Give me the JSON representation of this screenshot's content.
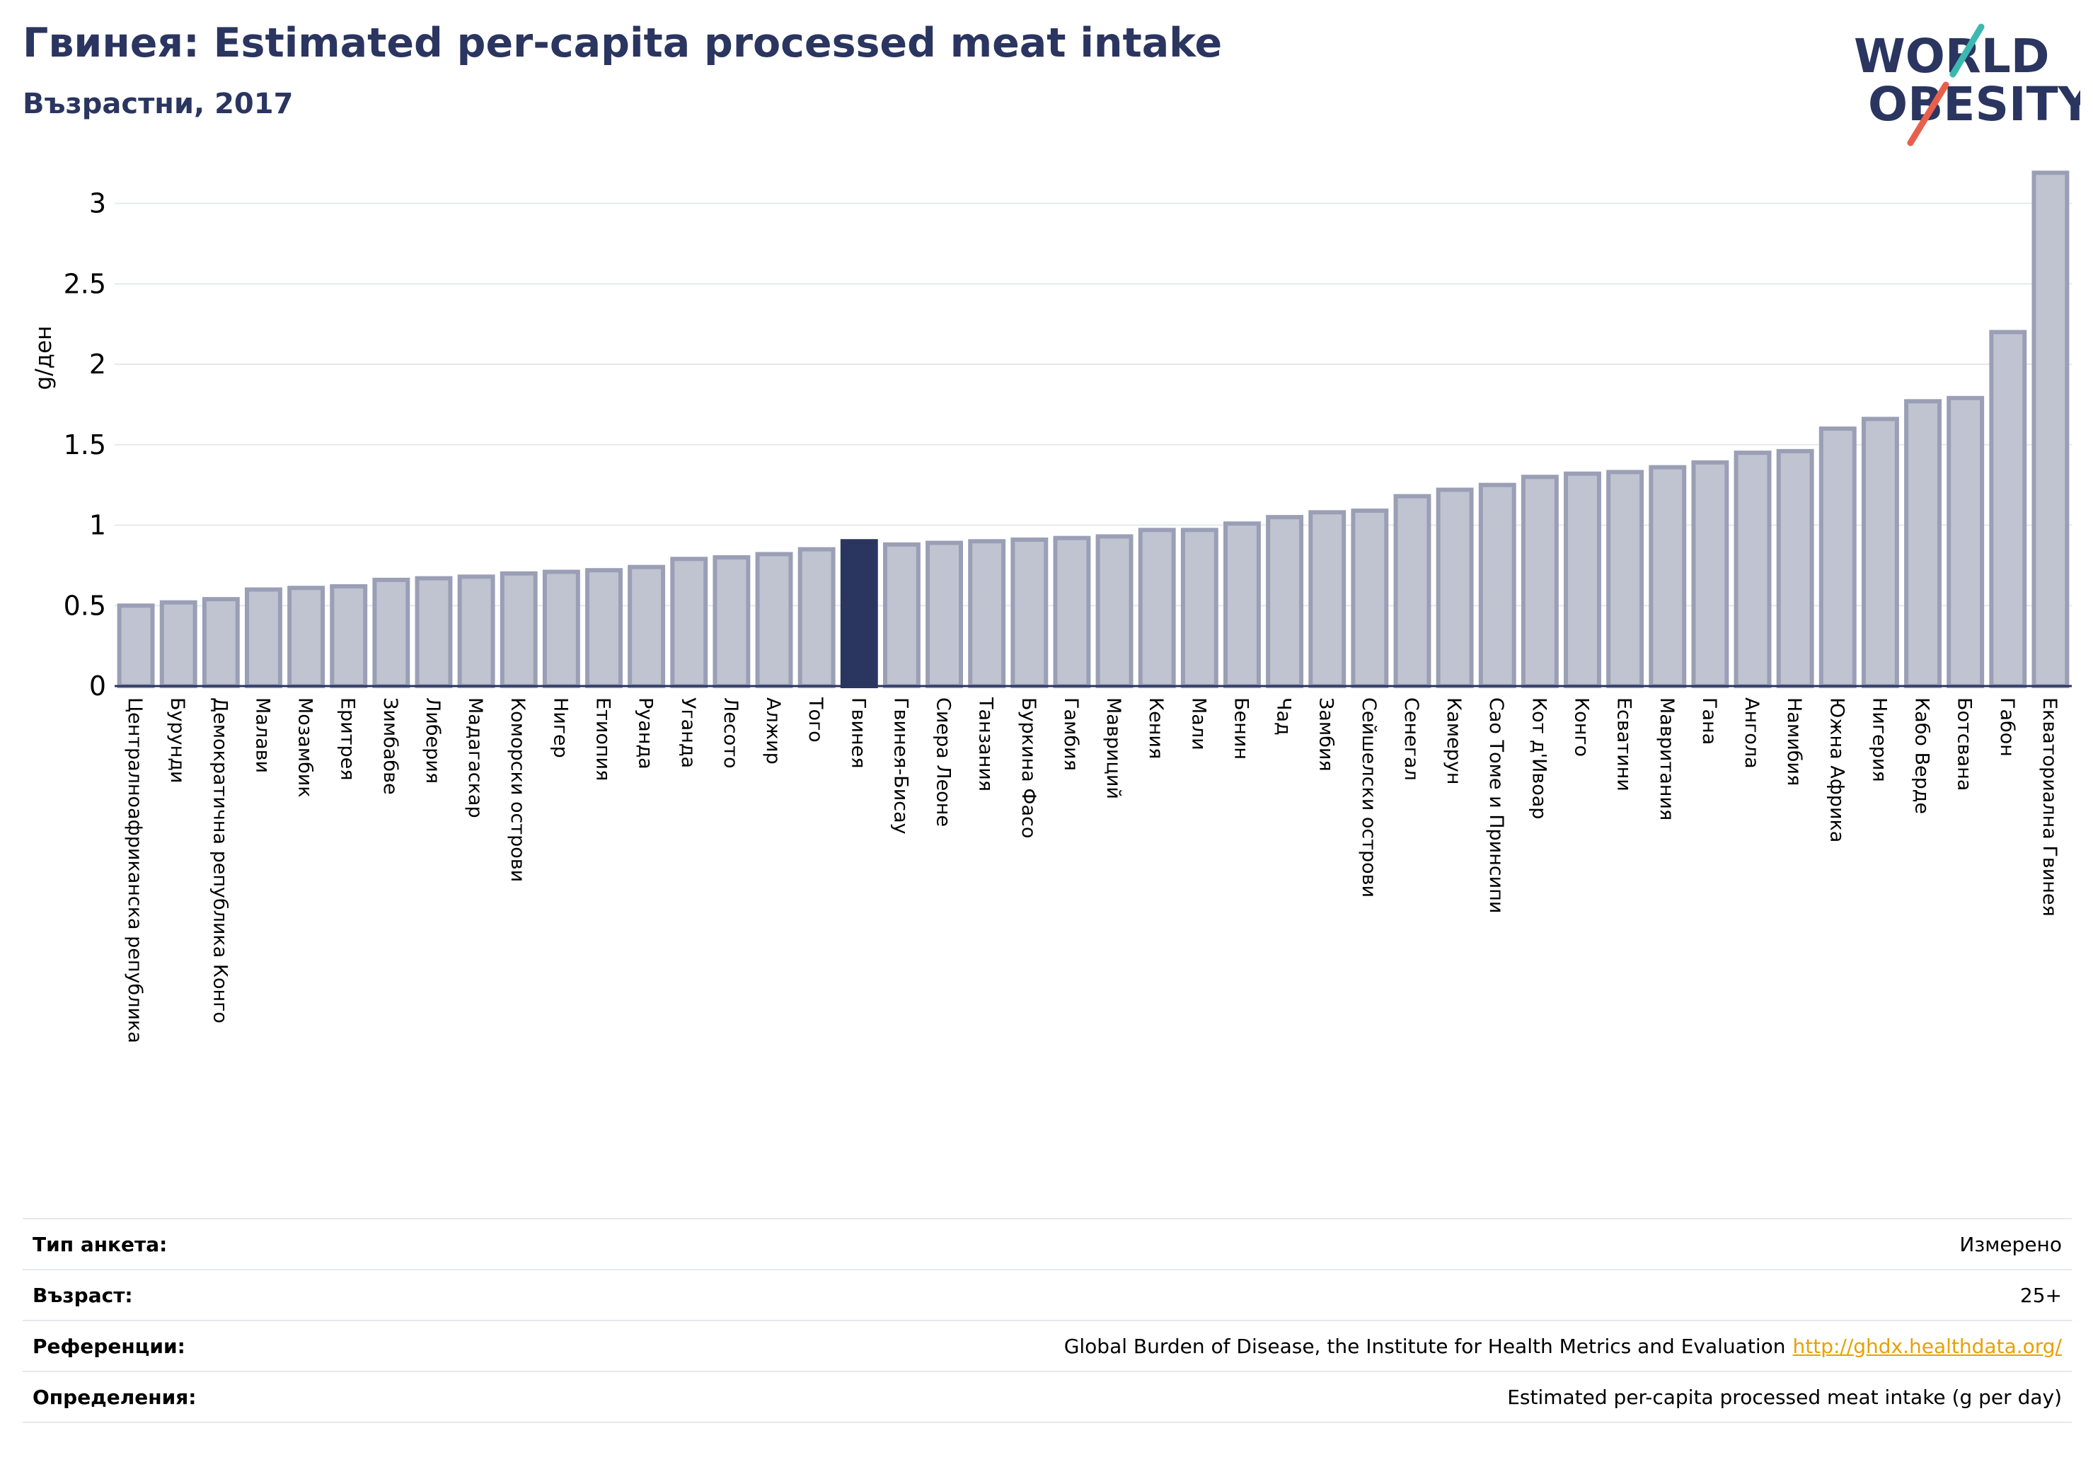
{
  "header": {
    "title": "Гвинея: Estimated per-capita processed meat intake",
    "subtitle": "Възрастни, 2017"
  },
  "logo": {
    "line1": "WORLD",
    "line2": "OBESITY",
    "accent_teal": "#3bb8b0",
    "accent_red": "#e8604c"
  },
  "colors": {
    "bar": "#c0c3d0",
    "bar_border": "#9a9fb6",
    "highlight": "#2a3560"
  },
  "chart_data": {
    "type": "bar",
    "ylabel": "g/ден",
    "ylim": [
      0,
      3.2
    ],
    "yticks": [
      0,
      0.5,
      1,
      1.5,
      2,
      2.5,
      3
    ],
    "ytick_labels": [
      "0",
      "0.5",
      "1",
      "1.5",
      "2",
      "2.5",
      "3"
    ],
    "grid": true,
    "highlight": "Гвинея",
    "categories": [
      "Централноафриканска република",
      "Бурунди",
      "Демократична република Конго",
      "Малави",
      "Мозамбик",
      "Еритрея",
      "Зимбабве",
      "Либерия",
      "Мадагаскар",
      "Коморски острови",
      "Нигер",
      "Етиопия",
      "Руанда",
      "Уганда",
      "Лесото",
      "Алжир",
      "Того",
      "Гвинея",
      "Гвинея-Бисау",
      "Сиера Леоне",
      "Танзания",
      "Буркина Фасо",
      "Гамбия",
      "Мавриций",
      "Кения",
      "Мали",
      "Бенин",
      "Чад",
      "Замбия",
      "Сейшелски острови",
      "Сенегал",
      "Камерун",
      "Сао Томе и Принсипи",
      "Кот д'Ивоар",
      "Конго",
      "Есватини",
      "Мавритания",
      "Гана",
      "Ангола",
      "Намибия",
      "Южна Африка",
      "Нигерия",
      "Кабо Верде",
      "Ботсвана",
      "Габон",
      "Екваториална Гвинея"
    ],
    "values": [
      0.5,
      0.52,
      0.54,
      0.6,
      0.61,
      0.62,
      0.66,
      0.67,
      0.68,
      0.7,
      0.71,
      0.72,
      0.74,
      0.79,
      0.8,
      0.82,
      0.85,
      0.9,
      0.88,
      0.89,
      0.9,
      0.91,
      0.92,
      0.93,
      0.97,
      0.97,
      1.01,
      1.05,
      1.08,
      1.09,
      1.18,
      1.22,
      1.25,
      1.3,
      1.32,
      1.33,
      1.36,
      1.39,
      1.45,
      1.46,
      1.6,
      1.66,
      1.77,
      1.79,
      2.2,
      3.19
    ]
  },
  "info": [
    {
      "key": "Тип анкета:",
      "value": "Измерено"
    },
    {
      "key": "Възраст:",
      "value": "25+"
    },
    {
      "key": "Референции:",
      "value": "Global Burden of Disease, the Institute for Health Metrics and Evaluation",
      "link": "http://ghdx.healthdata.org/"
    },
    {
      "key": "Определения:",
      "value": "Estimated per-capita processed meat intake (g per day)"
    }
  ]
}
